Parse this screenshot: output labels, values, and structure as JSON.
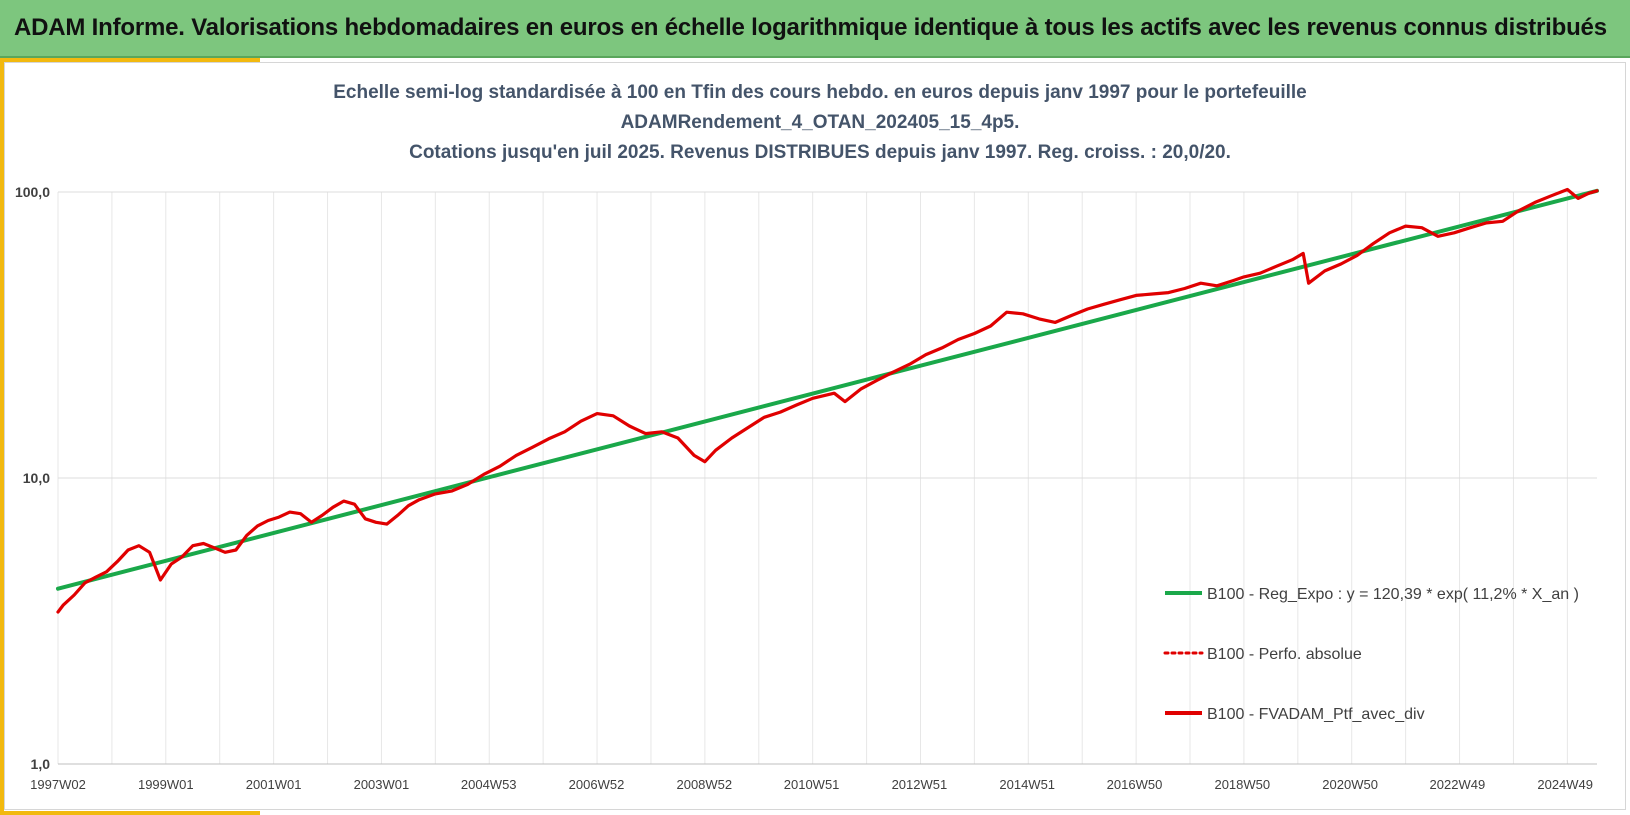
{
  "header": {
    "title": "ADAM Informe. Valorisations hebdomadaires en euros en échelle logarithmique identique à tous les actifs avec les revenus connus distribués"
  },
  "colors": {
    "banner": "#7dc67e",
    "accent": "#f2b90f",
    "reg_line": "#1aa84a",
    "perf_line": "#e00000"
  },
  "chart_data": {
    "type": "line",
    "title_lines": [
      "Echelle semi-log standardisée à 100 en Tfin des cours hebdo. en euros depuis janv 1997 pour le portefeuille",
      "ADAMRendement_4_OTAN_202405_15_4p5.",
      "Cotations jusqu'en juil 2025. Revenus DISTRIBUES depuis janv 1997. Reg. croiss. : 20,0/20."
    ],
    "y_scale": "log",
    "ylim": [
      1,
      100
    ],
    "y_ticks": [
      {
        "value": 1,
        "label": "1,0"
      },
      {
        "value": 10,
        "label": "10,0"
      },
      {
        "value": 100,
        "label": "100,0"
      }
    ],
    "xlim": [
      1997.0,
      2025.55
    ],
    "x_ticks": [
      {
        "value": 1997.0,
        "label": "1997W02"
      },
      {
        "value": 1999.0,
        "label": "1999W01"
      },
      {
        "value": 2001.0,
        "label": "2001W01"
      },
      {
        "value": 2003.0,
        "label": "2003W01"
      },
      {
        "value": 2004.99,
        "label": "2004W53"
      },
      {
        "value": 2006.99,
        "label": "2006W52"
      },
      {
        "value": 2008.99,
        "label": "2008W52"
      },
      {
        "value": 2010.98,
        "label": "2010W51"
      },
      {
        "value": 2012.98,
        "label": "2012W51"
      },
      {
        "value": 2014.98,
        "label": "2014W51"
      },
      {
        "value": 2016.97,
        "label": "2016W50"
      },
      {
        "value": 2018.97,
        "label": "2018W50"
      },
      {
        "value": 2020.97,
        "label": "2020W50"
      },
      {
        "value": 2022.96,
        "label": "2022W49"
      },
      {
        "value": 2024.96,
        "label": "2024W49"
      }
    ],
    "grid": true,
    "legend_position": "bottom-right",
    "series": [
      {
        "name": "B100 - Reg_Expo : y = 120,39 * exp( 11,2% *  X_an )",
        "style": "solid",
        "color": "#1aa84a",
        "x": [
          1997.0,
          2025.55
        ],
        "y": [
          4.1,
          101
        ]
      },
      {
        "name": "B100 - Perfo. absolue",
        "style": "dotted",
        "color": "#e00000",
        "x": [],
        "y": []
      },
      {
        "name": "B100 - FVADAM_Ptf_avec_div",
        "style": "solid",
        "color": "#e00000",
        "x": [
          1997.0,
          1997.1,
          1997.3,
          1997.5,
          1997.7,
          1997.9,
          1998.1,
          1998.3,
          1998.5,
          1998.7,
          1998.9,
          1999.1,
          1999.3,
          1999.5,
          1999.7,
          1999.9,
          2000.1,
          2000.3,
          2000.5,
          2000.7,
          2000.9,
          2001.1,
          2001.3,
          2001.5,
          2001.7,
          2001.9,
          2002.1,
          2002.3,
          2002.5,
          2002.7,
          2002.9,
          2003.1,
          2003.3,
          2003.5,
          2003.7,
          2004.0,
          2004.3,
          2004.6,
          2004.9,
          2005.2,
          2005.5,
          2005.8,
          2006.1,
          2006.4,
          2006.7,
          2007.0,
          2007.3,
          2007.6,
          2007.9,
          2008.2,
          2008.5,
          2008.8,
          2009.0,
          2009.2,
          2009.5,
          2009.8,
          2010.1,
          2010.4,
          2010.7,
          2011.0,
          2011.4,
          2011.6,
          2011.9,
          2012.2,
          2012.5,
          2012.8,
          2013.1,
          2013.4,
          2013.7,
          2014.0,
          2014.3,
          2014.6,
          2014.9,
          2015.2,
          2015.5,
          2015.8,
          2016.1,
          2016.4,
          2016.7,
          2017.0,
          2017.3,
          2017.6,
          2017.9,
          2018.2,
          2018.5,
          2018.8,
          2019.0,
          2019.3,
          2019.6,
          2019.9,
          2020.1,
          2020.2,
          2020.5,
          2020.8,
          2021.1,
          2021.4,
          2021.7,
          2022.0,
          2022.3,
          2022.6,
          2022.9,
          2023.2,
          2023.5,
          2023.8,
          2024.1,
          2024.4,
          2024.7,
          2025.0,
          2025.2,
          2025.4,
          2025.55
        ],
        "y": [
          3.4,
          3.6,
          3.9,
          4.3,
          4.5,
          4.7,
          5.1,
          5.6,
          5.8,
          5.5,
          4.4,
          5.0,
          5.3,
          5.8,
          5.9,
          5.7,
          5.5,
          5.6,
          6.3,
          6.8,
          7.1,
          7.3,
          7.6,
          7.5,
          7.0,
          7.4,
          7.9,
          8.3,
          8.1,
          7.2,
          7.0,
          6.9,
          7.4,
          8.0,
          8.4,
          8.8,
          9.0,
          9.5,
          10.3,
          11.0,
          12.0,
          12.8,
          13.7,
          14.5,
          15.8,
          16.8,
          16.5,
          15.2,
          14.3,
          14.5,
          13.8,
          12.0,
          11.4,
          12.5,
          13.8,
          15.0,
          16.3,
          17.0,
          18.0,
          19.0,
          19.8,
          18.5,
          20.5,
          22.0,
          23.5,
          25.0,
          27.0,
          28.5,
          30.5,
          32.0,
          34.0,
          38.0,
          37.5,
          36.0,
          35.0,
          37.0,
          39.0,
          40.5,
          42.0,
          43.5,
          44.0,
          44.5,
          46.0,
          48.0,
          47.0,
          49.0,
          50.5,
          52.0,
          55.0,
          58.0,
          61.0,
          48.0,
          53.0,
          56.0,
          60.0,
          66.0,
          72.0,
          76.0,
          75.0,
          70.0,
          72.0,
          75.0,
          78.0,
          79.0,
          86.0,
          92.0,
          97.0,
          102.0,
          95.0,
          99.0,
          101.0
        ]
      }
    ]
  }
}
